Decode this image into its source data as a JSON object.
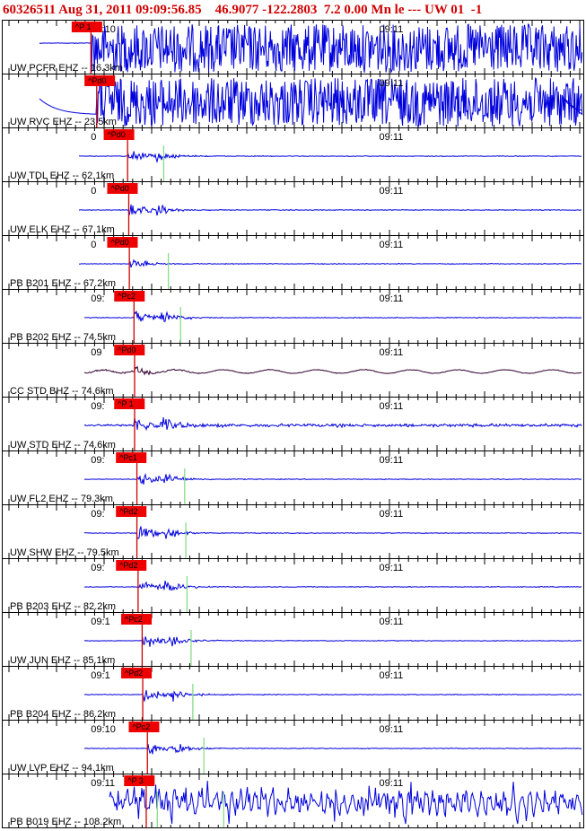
{
  "header": {
    "text": "60326511 Aug 31, 2011 09:09:56.85    46.9077 -122.2803  7.2 0.00 Mn le --- UW 01  -1"
  },
  "colors": {
    "trace": "#0000dd",
    "trace_dark": "#330033",
    "pick_box": "#ee0000",
    "pick_line": "#cc0000",
    "theoretical_line": "#88dd88",
    "header_text": "#d00000"
  },
  "panels": [
    {
      "station": "UW PCFR EHZ -- 16.3km",
      "time1": "09:10",
      "time2": "09:11",
      "pick": "P 1",
      "pick_pos": 0.12,
      "onset": 0.153,
      "green": null,
      "style": "saturated",
      "trace_color": "trace"
    },
    {
      "station": "UW RVC EHZ -- 23.5km",
      "time1": "09:10",
      "time2": "09:11",
      "pick": "Pd0",
      "pick_pos": 0.142,
      "onset": 0.163,
      "green": null,
      "style": "saturated2",
      "trace_color": "trace"
    },
    {
      "station": "UW TDL EHZ -- 62.1km",
      "time1": "0",
      "time2": "09:11",
      "pick": "Pd0",
      "pick_pos": 0.175,
      "onset": 0.216,
      "green": 0.278,
      "style": "weak",
      "trace_color": "trace"
    },
    {
      "station": "UW ELK EHZ -- 67.1km",
      "time1": "0",
      "time2": "09:11",
      "pick": "Pd0",
      "pick_pos": 0.181,
      "onset": 0.218,
      "green": null,
      "style": "weak",
      "trace_color": "trace"
    },
    {
      "station": "PB B201 EHZ -- 67.2km",
      "time1": "0",
      "time2": "09:11",
      "pick": "Pd0",
      "pick_pos": 0.181,
      "onset": 0.219,
      "green": 0.286,
      "style": "tiny",
      "trace_color": "trace"
    },
    {
      "station": "PB B202 EHZ -- 74.5km",
      "time1": "09:",
      "time2": "09:11",
      "pick": "Pc2",
      "pick_pos": 0.193,
      "onset": 0.227,
      "green": 0.307,
      "style": "medium",
      "trace_color": "trace"
    },
    {
      "station": "CC STD BHZ -- 74.6km",
      "time1": "09",
      "time2": "09:11",
      "pick": "Pd0",
      "pick_pos": 0.193,
      "onset": 0.228,
      "green": null,
      "style": "dark",
      "trace_color": "trace_dark"
    },
    {
      "station": "UW STD EHZ -- 74.6km",
      "time1": "09:",
      "time2": "09:11",
      "pick": "P 1",
      "pick_pos": 0.193,
      "onset": 0.228,
      "green": null,
      "style": "noisy",
      "trace_color": "trace"
    },
    {
      "station": "UW FL2 EHZ -- 79.3km",
      "time1": "09:",
      "time2": "09:11",
      "pick": "Pc1",
      "pick_pos": 0.196,
      "onset": 0.232,
      "green": 0.314,
      "style": "medium",
      "trace_color": "trace"
    },
    {
      "station": "UW SHW EHZ -- 79.5km",
      "time1": "09:",
      "time2": "09:11",
      "pick": "Pd2",
      "pick_pos": 0.196,
      "onset": 0.232,
      "green": 0.316,
      "style": "medium",
      "trace_color": "trace"
    },
    {
      "station": "PB B203 EHZ -- 82.2km",
      "time1": "09:",
      "time2": "09:11",
      "pick": "Pd2",
      "pick_pos": 0.196,
      "onset": 0.234,
      "green": 0.318,
      "style": "medium",
      "trace_color": "trace"
    },
    {
      "station": "UW JUN EHZ -- 85.1km",
      "time1": "09:1",
      "time2": "09:11",
      "pick": "Pc2",
      "pick_pos": 0.205,
      "onset": 0.241,
      "green": 0.325,
      "style": "medium",
      "trace_color": "trace"
    },
    {
      "station": "PB B204 EHZ -- 86.2km",
      "time1": "09:1",
      "time2": "09:11",
      "pick": "Pd2",
      "pick_pos": 0.205,
      "onset": 0.242,
      "green": 0.328,
      "style": "medium",
      "trace_color": "trace"
    },
    {
      "station": "UW LVP EHZ -- 94.1km",
      "time1": "09:10",
      "time2": "09:11",
      "pick": "Pc2",
      "pick_pos": 0.218,
      "onset": 0.25,
      "green": 0.347,
      "style": "medium",
      "trace_color": "trace"
    },
    {
      "station": "PB B019 EHZ -- 108.2km",
      "time1": "09:11",
      "time2": "09:11",
      "pick": "P 3",
      "pick_pos": 0.21,
      "onset": 0.248,
      "green": 0.267,
      "green2": 0.381,
      "style": "chaotic",
      "trace_color": "trace"
    }
  ]
}
